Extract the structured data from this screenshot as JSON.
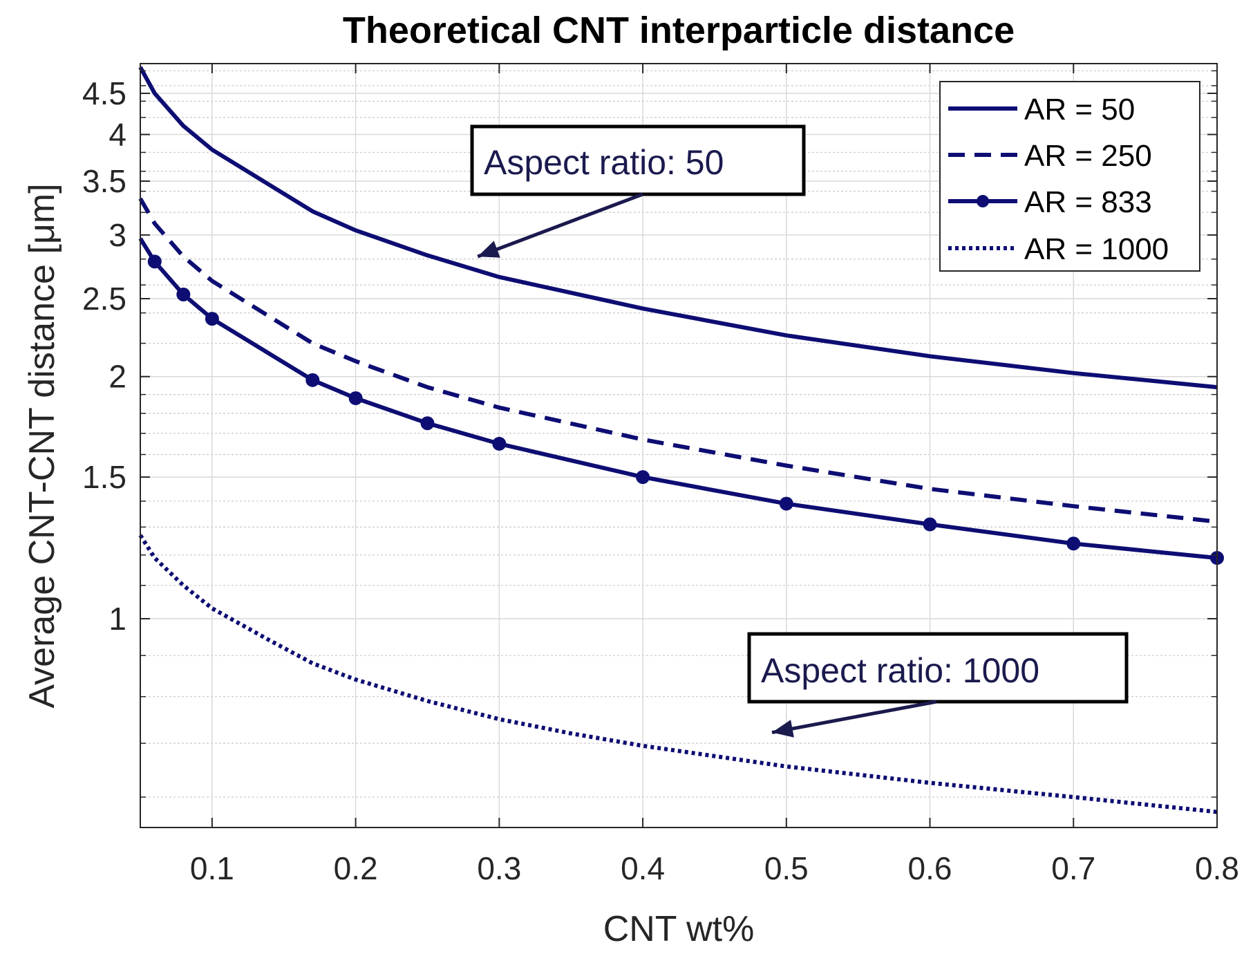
{
  "chart_data": {
    "type": "line",
    "title": "Theoretical CNT interparticle distance",
    "xlabel": "CNT wt%",
    "ylabel": "Average CNT-CNT distance [μm]",
    "xlim": [
      0.05,
      0.8
    ],
    "ylim": [
      0.55,
      4.9
    ],
    "yscale": "log",
    "grid": true,
    "legend_location": "top-right",
    "x_ticks": [
      0.1,
      0.2,
      0.3,
      0.4,
      0.5,
      0.6,
      0.7,
      0.8
    ],
    "x_tick_labels": [
      "0.1",
      "0.2",
      "0.3",
      "0.4",
      "0.5",
      "0.6",
      "0.7",
      "0.8"
    ],
    "y_ticks": [
      1,
      1.5,
      2,
      2.5,
      3,
      3.5,
      4,
      4.5
    ],
    "y_tick_labels": [
      "1",
      "1.5",
      "2",
      "2.5",
      "3",
      "3.5",
      "4",
      "4.5"
    ],
    "series": [
      {
        "name": "AR = 50",
        "style": "solid",
        "marker": "none",
        "x": [
          0.05,
          0.06,
          0.08,
          0.1,
          0.17,
          0.2,
          0.25,
          0.3,
          0.4,
          0.5,
          0.6,
          0.7,
          0.8
        ],
        "values": [
          4.85,
          4.5,
          4.1,
          3.83,
          3.21,
          3.04,
          2.83,
          2.66,
          2.43,
          2.25,
          2.12,
          2.02,
          1.94
        ]
      },
      {
        "name": "AR = 250",
        "style": "dashed",
        "marker": "none",
        "x": [
          0.05,
          0.06,
          0.08,
          0.1,
          0.17,
          0.2,
          0.25,
          0.3,
          0.4,
          0.5,
          0.6,
          0.7,
          0.8
        ],
        "values": [
          3.33,
          3.1,
          2.82,
          2.63,
          2.2,
          2.09,
          1.94,
          1.83,
          1.67,
          1.55,
          1.45,
          1.38,
          1.32
        ]
      },
      {
        "name": "AR = 833",
        "style": "solid",
        "marker": "circle",
        "x": [
          0.05,
          0.06,
          0.08,
          0.1,
          0.17,
          0.2,
          0.25,
          0.3,
          0.4,
          0.5,
          0.6,
          0.7,
          0.8
        ],
        "values": [
          2.97,
          2.78,
          2.53,
          2.36,
          1.98,
          1.88,
          1.75,
          1.65,
          1.5,
          1.39,
          1.31,
          1.24,
          1.19
        ]
      },
      {
        "name": "AR = 1000",
        "style": "dotted",
        "marker": "none",
        "x": [
          0.05,
          0.06,
          0.08,
          0.1,
          0.14,
          0.17,
          0.2,
          0.25,
          0.3,
          0.35,
          0.4,
          0.5,
          0.6,
          0.7,
          0.8
        ],
        "values": [
          1.27,
          1.19,
          1.1,
          1.03,
          0.94,
          0.88,
          0.84,
          0.79,
          0.75,
          0.72,
          0.695,
          0.655,
          0.625,
          0.6,
          0.575
        ]
      }
    ],
    "annotations": [
      {
        "text": "Aspect ratio: 50",
        "arrow_to": {
          "x": 0.285,
          "y": 2.82
        }
      },
      {
        "text": "Aspect ratio: 1000",
        "arrow_to": {
          "x": 0.49,
          "y": 0.722
        }
      }
    ]
  },
  "colors": {
    "series": "#0d0d73",
    "axis": "#262626",
    "grid_major": "#d9d9d9",
    "grid_minor": "#c8c8c8",
    "annotation": "#1a1a4e"
  }
}
